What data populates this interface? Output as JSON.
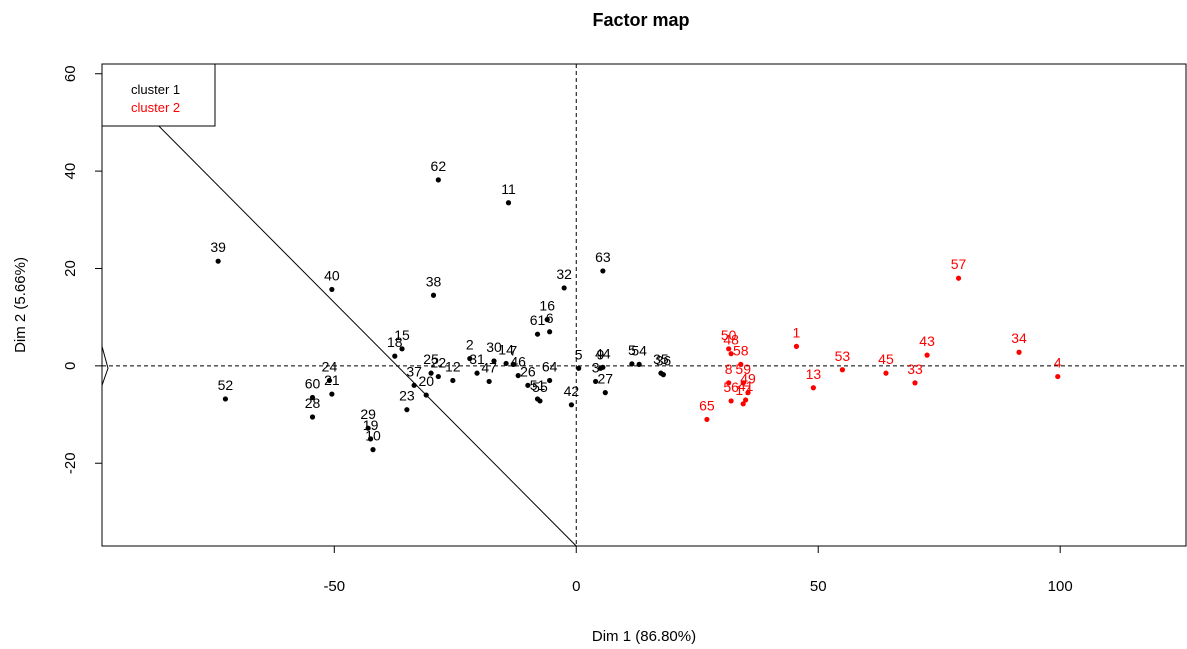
{
  "chart_data": {
    "type": "scatter",
    "title": "Factor map",
    "xlabel": "Dim 1 (86.80%)",
    "ylabel": "Dim 2 (5.66%)",
    "xlim": [
      -98,
      126
    ],
    "ylim": [
      -37,
      62
    ],
    "xticks": [
      -50,
      0,
      50,
      100
    ],
    "yticks": [
      -20,
      0,
      20,
      40,
      60
    ],
    "tick_labels_x": [
      "-50",
      "0",
      "50",
      "100"
    ],
    "tick_labels_y": [
      "-20",
      "0",
      "20",
      "40",
      "60"
    ],
    "reference_lines": {
      "x": 0,
      "y": 0,
      "style": "dashed"
    },
    "separator_line": {
      "from": [
        -98,
        61
      ],
      "to": [
        0,
        -37
      ]
    },
    "legend": {
      "position": "top-left",
      "entries": [
        {
          "label": "cluster 1",
          "color": "#000000"
        },
        {
          "label": "cluster 2",
          "color": "#ff0000"
        }
      ]
    },
    "series": [
      {
        "name": "cluster 1",
        "color": "#000000",
        "points": [
          {
            "label": "39",
            "x": -74,
            "y": 21.5
          },
          {
            "label": "52",
            "x": -72.5,
            "y": -6.8
          },
          {
            "label": "40",
            "x": -50.5,
            "y": 15.7
          },
          {
            "label": "24",
            "x": -51,
            "y": -3
          },
          {
            "label": "21",
            "x": -50.5,
            "y": -5.8
          },
          {
            "label": "60",
            "x": -54.5,
            "y": -6.5
          },
          {
            "label": "28",
            "x": -54.5,
            "y": -10.5
          },
          {
            "label": "29",
            "x": -43,
            "y": -12.8
          },
          {
            "label": "19",
            "x": -42.5,
            "y": -15
          },
          {
            "label": "10",
            "x": -42,
            "y": -17.2
          },
          {
            "label": "62",
            "x": -28.5,
            "y": 38.2
          },
          {
            "label": "38",
            "x": -29.5,
            "y": 14.5
          },
          {
            "label": "11",
            "x": -14,
            "y": 33.5
          },
          {
            "label": "18",
            "x": -37.5,
            "y": 2
          },
          {
            "label": "15",
            "x": -36,
            "y": 3.5
          },
          {
            "label": "25",
            "x": -30,
            "y": -1.5
          },
          {
            "label": "22",
            "x": -28.5,
            "y": -2.2
          },
          {
            "label": "37",
            "x": -33.5,
            "y": -4
          },
          {
            "label": "20",
            "x": -31,
            "y": -6
          },
          {
            "label": "23",
            "x": -35,
            "y": -9
          },
          {
            "label": "12",
            "x": -25.5,
            "y": -3
          },
          {
            "label": "2",
            "x": -22,
            "y": 1.5
          },
          {
            "label": "31",
            "x": -20.5,
            "y": -1.5
          },
          {
            "label": "30",
            "x": -17,
            "y": 1
          },
          {
            "label": "14",
            "x": -14.5,
            "y": 0.5
          },
          {
            "label": "7",
            "x": -13,
            "y": 0.3
          },
          {
            "label": "47",
            "x": -18,
            "y": -3.2
          },
          {
            "label": "46",
            "x": -12,
            "y": -2
          },
          {
            "label": "26",
            "x": -10,
            "y": -4
          },
          {
            "label": "51",
            "x": -8,
            "y": -6.8
          },
          {
            "label": "55",
            "x": -7.5,
            "y": -7.2
          },
          {
            "label": "64",
            "x": -5.5,
            "y": -3
          },
          {
            "label": "61",
            "x": -8,
            "y": 6.5
          },
          {
            "label": "6",
            "x": -5.5,
            "y": 7
          },
          {
            "label": "16",
            "x": -6,
            "y": 9.5
          },
          {
            "label": "32",
            "x": -2.5,
            "y": 16
          },
          {
            "label": "5",
            "x": 0.5,
            "y": -0.5
          },
          {
            "label": "42",
            "x": -1,
            "y": -8
          },
          {
            "label": "3",
            "x": 4,
            "y": -3.2
          },
          {
            "label": "9",
            "x": 5,
            "y": -0.5
          },
          {
            "label": "44",
            "x": 5.5,
            "y": -0.3
          },
          {
            "label": "27",
            "x": 6,
            "y": -5.5
          },
          {
            "label": "63",
            "x": 5.5,
            "y": 19.5
          },
          {
            "label": "5b",
            "x": 11.5,
            "y": 0.4
          },
          {
            "label": "54",
            "x": 13,
            "y": 0.3
          },
          {
            "label": "35",
            "x": 17.5,
            "y": -1.5
          },
          {
            "label": "36",
            "x": 18,
            "y": -1.8
          }
        ]
      },
      {
        "name": "cluster 2",
        "color": "#ff0000",
        "points": [
          {
            "label": "65",
            "x": 27,
            "y": -11
          },
          {
            "label": "50",
            "x": 31.5,
            "y": 3.5
          },
          {
            "label": "48",
            "x": 32,
            "y": 2.5
          },
          {
            "label": "8",
            "x": 31.5,
            "y": -3.5
          },
          {
            "label": "56",
            "x": 32,
            "y": -7.2
          },
          {
            "label": "58",
            "x": 34,
            "y": 0.3
          },
          {
            "label": "59",
            "x": 34.5,
            "y": -3.5
          },
          {
            "label": "49",
            "x": 35.5,
            "y": -5.5
          },
          {
            "label": "41",
            "x": 35,
            "y": -7
          },
          {
            "label": "17",
            "x": 34.5,
            "y": -7.8
          },
          {
            "label": "1",
            "x": 45.5,
            "y": 4
          },
          {
            "label": "13",
            "x": 49,
            "y": -4.5
          },
          {
            "label": "53",
            "x": 55,
            "y": -0.8
          },
          {
            "label": "45",
            "x": 64,
            "y": -1.5
          },
          {
            "label": "33",
            "x": 70,
            "y": -3.5
          },
          {
            "label": "43",
            "x": 72.5,
            "y": 2.2
          },
          {
            "label": "57",
            "x": 79,
            "y": 18
          },
          {
            "label": "34",
            "x": 91.5,
            "y": 2.8
          },
          {
            "label": "4",
            "x": 99.5,
            "y": -2.2
          }
        ]
      }
    ]
  },
  "label_texts": {
    "5b": "5"
  }
}
